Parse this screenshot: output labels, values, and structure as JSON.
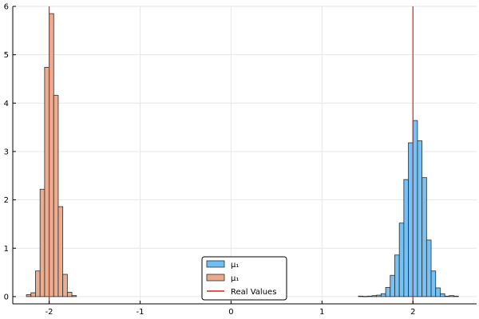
{
  "chart_data": {
    "type": "bar",
    "title": "",
    "xlabel": "",
    "ylabel": "",
    "xlim": [
      -2.4,
      2.7
    ],
    "ylim": [
      -0.15,
      6
    ],
    "grid": true,
    "legend_position": "bottom-center",
    "xticks": [
      "-2",
      "-1",
      "0",
      "1",
      "2"
    ],
    "yticks": [
      "0",
      "1",
      "2",
      "3",
      "4",
      "5",
      "6"
    ],
    "series": [
      {
        "name": "μ₁",
        "color": "#6dbff5",
        "bin_width": 0.05,
        "bin_starts": [
          1.4,
          1.45,
          1.5,
          1.55,
          1.6,
          1.65,
          1.7,
          1.75,
          1.8,
          1.85,
          1.9,
          1.95,
          2.0,
          2.05,
          2.1,
          2.15,
          2.2,
          2.25,
          2.3,
          2.35,
          2.4,
          2.45
        ],
        "values": [
          0.01,
          0.005,
          0.01,
          0.02,
          0.03,
          0.06,
          0.19,
          0.44,
          0.86,
          1.52,
          2.42,
          3.18,
          3.64,
          3.22,
          2.46,
          1.17,
          0.53,
          0.18,
          0.06,
          0.01,
          0.02,
          0.01
        ]
      },
      {
        "name": "μ₁",
        "color": "#e8a98c",
        "bin_width": 0.05,
        "bin_starts": [
          -2.25,
          -2.2,
          -2.15,
          -2.1,
          -2.05,
          -2.0,
          -1.95,
          -1.9,
          -1.85,
          -1.8,
          -1.75
        ],
        "values": [
          0.04,
          0.08,
          0.53,
          2.22,
          4.74,
          5.85,
          4.16,
          1.86,
          0.46,
          0.09,
          0.02
        ]
      }
    ],
    "reference_lines": {
      "name": "Real Values",
      "color": "#e41a1c",
      "x": [
        -2,
        2
      ]
    }
  }
}
